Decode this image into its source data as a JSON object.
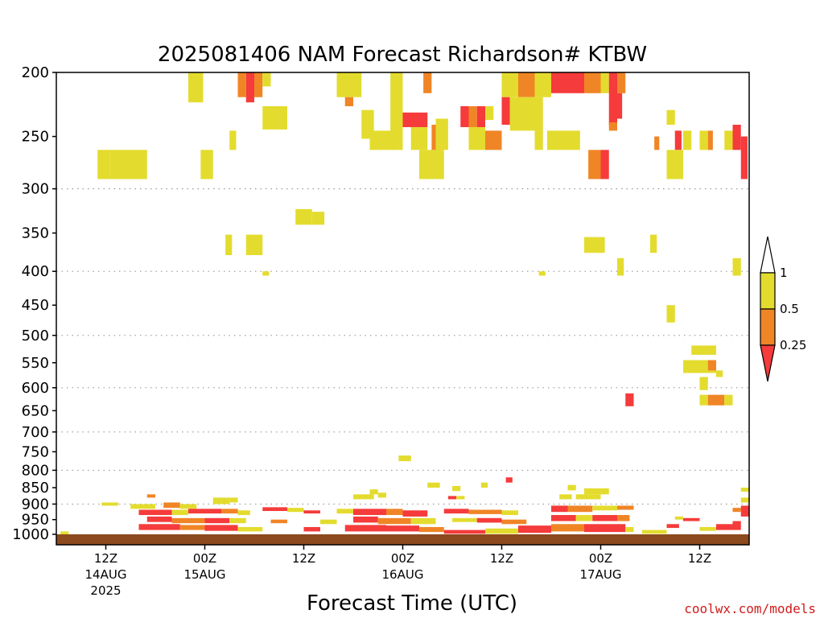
{
  "chart_data": {
    "type": "heatmap",
    "title": "2025081406 NAM Forecast Richardson# KTBW",
    "xlabel": "Forecast Time (UTC)",
    "ylabel": "",
    "y_scale": "pressure (reversed, log-like)",
    "ylim": [
      1000,
      200
    ],
    "y_ticks": [
      200,
      250,
      300,
      350,
      400,
      450,
      500,
      550,
      600,
      650,
      700,
      750,
      800,
      850,
      900,
      950,
      1000
    ],
    "dotted_gridlines_at": [
      300,
      400,
      500,
      600,
      700,
      800,
      900
    ],
    "x_ticks": [
      {
        "hour": 12,
        "label": "12Z",
        "date": "14AUG",
        "year": "2025"
      },
      {
        "hour": 24,
        "label": "00Z",
        "date": "15AUG",
        "year": ""
      },
      {
        "hour": 36,
        "label": "12Z",
        "date": "",
        "year": ""
      },
      {
        "hour": 48,
        "label": "00Z",
        "date": "16AUG",
        "year": ""
      },
      {
        "hour": 60,
        "label": "12Z",
        "date": "",
        "year": ""
      },
      {
        "hour": 72,
        "label": "00Z",
        "date": "17AUG",
        "year": ""
      },
      {
        "hour": 84,
        "label": "12Z",
        "date": "",
        "year": ""
      }
    ],
    "xlim_hours": [
      6,
      90
    ],
    "legend": {
      "placement": "right",
      "labels": [
        "1",
        "0.5",
        "0.25"
      ],
      "bins": [
        {
          "range": "< 0.25",
          "color": "#f53b3b"
        },
        {
          "range": "0.25 - 0.5",
          "color": "#f08526"
        },
        {
          "range": "0.5 - 1",
          "color": "#e3dc2e"
        },
        {
          "range": "> 1",
          "color": "#ffffff"
        }
      ]
    },
    "ground_color": "#8c4a1e",
    "cells": [
      {
        "t": 22.0,
        "dt": 1.8,
        "p": 200,
        "p2": 222,
        "c": "y"
      },
      {
        "t": 28.0,
        "dt": 1.0,
        "p": 200,
        "p2": 218,
        "c": "o"
      },
      {
        "t": 29.0,
        "dt": 1.0,
        "p": 200,
        "p2": 222,
        "c": "r"
      },
      {
        "t": 30.0,
        "dt": 1.0,
        "p": 200,
        "p2": 218,
        "c": "o"
      },
      {
        "t": 31.0,
        "dt": 1.0,
        "p": 200,
        "p2": 210,
        "c": "y"
      },
      {
        "t": 31.0,
        "dt": 3.0,
        "p": 225,
        "p2": 244,
        "c": "y"
      },
      {
        "t": 40.0,
        "dt": 3.0,
        "p": 200,
        "p2": 218,
        "c": "y"
      },
      {
        "t": 41.0,
        "dt": 1.0,
        "p": 218,
        "p2": 225,
        "c": "o"
      },
      {
        "t": 43.0,
        "dt": 1.5,
        "p": 228,
        "p2": 252,
        "c": "y"
      },
      {
        "t": 44.0,
        "dt": 3.0,
        "p": 245,
        "p2": 262,
        "c": "y"
      },
      {
        "t": 46.5,
        "dt": 1.5,
        "p": 200,
        "p2": 262,
        "c": "y"
      },
      {
        "t": 48.0,
        "dt": 3.0,
        "p": 230,
        "p2": 242,
        "c": "r"
      },
      {
        "t": 49.0,
        "dt": 2.0,
        "p": 242,
        "p2": 262,
        "c": "y"
      },
      {
        "t": 50.5,
        "dt": 1.0,
        "p": 200,
        "p2": 215,
        "c": "o"
      },
      {
        "t": 50.0,
        "dt": 3.0,
        "p": 262,
        "p2": 290,
        "c": "y"
      },
      {
        "t": 51.5,
        "dt": 1.0,
        "p": 240,
        "p2": 262,
        "c": "o"
      },
      {
        "t": 52.0,
        "dt": 1.5,
        "p": 235,
        "p2": 262,
        "c": "y"
      },
      {
        "t": 55.0,
        "dt": 1.0,
        "p": 225,
        "p2": 242,
        "c": "r"
      },
      {
        "t": 56.0,
        "dt": 1.0,
        "p": 225,
        "p2": 242,
        "c": "o"
      },
      {
        "t": 57.0,
        "dt": 1.0,
        "p": 225,
        "p2": 245,
        "c": "r"
      },
      {
        "t": 58.0,
        "dt": 1.0,
        "p": 225,
        "p2": 236,
        "c": "y"
      },
      {
        "t": 56.0,
        "dt": 2.0,
        "p": 242,
        "p2": 262,
        "c": "y"
      },
      {
        "t": 58.0,
        "dt": 2.0,
        "p": 245,
        "p2": 262,
        "c": "o"
      },
      {
        "t": 60.0,
        "dt": 2.0,
        "p": 200,
        "p2": 218,
        "c": "y"
      },
      {
        "t": 62.0,
        "dt": 2.0,
        "p": 200,
        "p2": 218,
        "c": "o"
      },
      {
        "t": 64.0,
        "dt": 2.0,
        "p": 200,
        "p2": 218,
        "c": "y"
      },
      {
        "t": 60.0,
        "dt": 1.0,
        "p": 218,
        "p2": 240,
        "c": "r"
      },
      {
        "t": 61.0,
        "dt": 4.0,
        "p": 218,
        "p2": 245,
        "c": "y"
      },
      {
        "t": 64.0,
        "dt": 1.0,
        "p": 245,
        "p2": 262,
        "c": "y"
      },
      {
        "t": 65.5,
        "dt": 4.0,
        "p": 245,
        "p2": 262,
        "c": "y"
      },
      {
        "t": 66.0,
        "dt": 4.0,
        "p": 200,
        "p2": 215,
        "c": "r"
      },
      {
        "t": 70.0,
        "dt": 2.0,
        "p": 200,
        "p2": 215,
        "c": "o"
      },
      {
        "t": 72.0,
        "dt": 1.0,
        "p": 200,
        "p2": 215,
        "c": "y"
      },
      {
        "t": 73.0,
        "dt": 1.0,
        "p": 200,
        "p2": 240,
        "c": "r"
      },
      {
        "t": 74.0,
        "dt": 1.0,
        "p": 200,
        "p2": 215,
        "c": "o"
      },
      {
        "t": 74.0,
        "dt": 0.6,
        "p": 215,
        "p2": 235,
        "c": "r"
      },
      {
        "t": 73.0,
        "dt": 1.0,
        "p": 238,
        "p2": 245,
        "c": "o"
      },
      {
        "t": 70.5,
        "dt": 1.5,
        "p": 262,
        "p2": 290,
        "c": "o"
      },
      {
        "t": 72.0,
        "dt": 1.0,
        "p": 262,
        "p2": 290,
        "c": "r"
      },
      {
        "t": 78.5,
        "dt": 0.6,
        "p": 250,
        "p2": 262,
        "c": "o"
      },
      {
        "t": 80.0,
        "dt": 1.0,
        "p": 228,
        "p2": 240,
        "c": "y"
      },
      {
        "t": 81.0,
        "dt": 0.8,
        "p": 245,
        "p2": 262,
        "c": "r"
      },
      {
        "t": 80.0,
        "dt": 2.0,
        "p": 262,
        "p2": 290,
        "c": "y"
      },
      {
        "t": 82.0,
        "dt": 1.0,
        "p": 245,
        "p2": 262,
        "c": "y"
      },
      {
        "t": 84.0,
        "dt": 1.0,
        "p": 245,
        "p2": 262,
        "c": "y"
      },
      {
        "t": 85.0,
        "dt": 0.6,
        "p": 245,
        "p2": 262,
        "c": "o"
      },
      {
        "t": 87.0,
        "dt": 1.0,
        "p": 245,
        "p2": 262,
        "c": "y"
      },
      {
        "t": 88.0,
        "dt": 1.0,
        "p": 240,
        "p2": 262,
        "c": "r"
      },
      {
        "t": 89.0,
        "dt": 0.8,
        "p": 250,
        "p2": 290,
        "c": "r"
      },
      {
        "t": 11.0,
        "dt": 1.5,
        "p": 262,
        "p2": 290,
        "c": "y"
      },
      {
        "t": 12.5,
        "dt": 4.5,
        "p": 262,
        "p2": 290,
        "c": "y"
      },
      {
        "t": 23.5,
        "dt": 1.5,
        "p": 262,
        "p2": 290,
        "c": "y"
      },
      {
        "t": 27.0,
        "dt": 0.8,
        "p": 245,
        "p2": 262,
        "c": "y"
      },
      {
        "t": 35.0,
        "dt": 2.0,
        "p": 322,
        "p2": 340,
        "c": "y"
      },
      {
        "t": 37.0,
        "dt": 1.5,
        "p": 325,
        "p2": 340,
        "c": "y"
      },
      {
        "t": 26.5,
        "dt": 0.8,
        "p": 352,
        "p2": 378,
        "c": "y"
      },
      {
        "t": 29.0,
        "dt": 2.0,
        "p": 352,
        "p2": 378,
        "c": "y"
      },
      {
        "t": 31.0,
        "dt": 0.8,
        "p": 400,
        "p2": 406,
        "c": "y"
      },
      {
        "t": 70.0,
        "dt": 2.5,
        "p": 355,
        "p2": 375,
        "c": "y"
      },
      {
        "t": 78.0,
        "dt": 0.8,
        "p": 352,
        "p2": 375,
        "c": "y"
      },
      {
        "t": 74.0,
        "dt": 0.8,
        "p": 382,
        "p2": 406,
        "c": "y"
      },
      {
        "t": 88.0,
        "dt": 1.0,
        "p": 382,
        "p2": 406,
        "c": "y"
      },
      {
        "t": 64.5,
        "dt": 0.8,
        "p": 400,
        "p2": 406,
        "c": "y"
      },
      {
        "t": 80.0,
        "dt": 1.0,
        "p": 450,
        "p2": 478,
        "c": "y"
      },
      {
        "t": 83.0,
        "dt": 3.0,
        "p": 518,
        "p2": 535,
        "c": "y"
      },
      {
        "t": 82.0,
        "dt": 4.0,
        "p": 545,
        "p2": 570,
        "c": "y"
      },
      {
        "t": 85.0,
        "dt": 1.0,
        "p": 545,
        "p2": 565,
        "c": "o"
      },
      {
        "t": 86.0,
        "dt": 0.8,
        "p": 565,
        "p2": 578,
        "c": "y"
      },
      {
        "t": 84.0,
        "dt": 1.0,
        "p": 578,
        "p2": 605,
        "c": "y"
      },
      {
        "t": 84.0,
        "dt": 1.0,
        "p": 615,
        "p2": 638,
        "c": "y"
      },
      {
        "t": 85.0,
        "dt": 2.0,
        "p": 615,
        "p2": 638,
        "c": "o"
      },
      {
        "t": 87.0,
        "dt": 1.0,
        "p": 615,
        "p2": 638,
        "c": "y"
      },
      {
        "t": 75.0,
        "dt": 1.0,
        "p": 612,
        "p2": 640,
        "c": "r"
      },
      {
        "t": 47.5,
        "dt": 1.5,
        "p": 760,
        "p2": 775,
        "c": "y"
      },
      {
        "t": 51.0,
        "dt": 1.5,
        "p": 835,
        "p2": 850,
        "c": "y"
      },
      {
        "t": 60.5,
        "dt": 0.8,
        "p": 820,
        "p2": 835,
        "c": "r"
      },
      {
        "t": 57.5,
        "dt": 0.8,
        "p": 835,
        "p2": 850,
        "c": "y"
      },
      {
        "t": 54.0,
        "dt": 1.0,
        "p": 845,
        "p2": 860,
        "c": "y"
      },
      {
        "t": 44.0,
        "dt": 1.0,
        "p": 855,
        "p2": 870,
        "c": "y"
      },
      {
        "t": 68.0,
        "dt": 1.0,
        "p": 842,
        "p2": 858,
        "c": "y"
      },
      {
        "t": 70.0,
        "dt": 3.0,
        "p": 852,
        "p2": 870,
        "c": "y"
      },
      {
        "t": 89.0,
        "dt": 1.0,
        "p": 850,
        "p2": 862,
        "c": "y"
      },
      {
        "t": 11.5,
        "dt": 2.0,
        "p": 895,
        "p2": 905,
        "c": "y"
      },
      {
        "t": 17.0,
        "dt": 1.0,
        "p": 870,
        "p2": 880,
        "c": "o"
      },
      {
        "t": 25.0,
        "dt": 2.0,
        "p": 880,
        "p2": 900,
        "c": "y"
      },
      {
        "t": 27.0,
        "dt": 1.0,
        "p": 880,
        "p2": 895,
        "c": "y"
      },
      {
        "t": 42.0,
        "dt": 2.5,
        "p": 870,
        "p2": 885,
        "c": "y"
      },
      {
        "t": 45.0,
        "dt": 1.0,
        "p": 865,
        "p2": 880,
        "c": "y"
      },
      {
        "t": 53.5,
        "dt": 1.0,
        "p": 875,
        "p2": 885,
        "c": "r"
      },
      {
        "t": 54.5,
        "dt": 1.0,
        "p": 875,
        "p2": 885,
        "c": "y"
      },
      {
        "t": 67.0,
        "dt": 1.5,
        "p": 870,
        "p2": 885,
        "c": "y"
      },
      {
        "t": 69.0,
        "dt": 3.0,
        "p": 870,
        "p2": 885,
        "c": "y"
      },
      {
        "t": 89.0,
        "dt": 1.0,
        "p": 880,
        "p2": 895,
        "c": "y"
      },
      {
        "t": 15.0,
        "dt": 3.0,
        "p": 900,
        "p2": 915,
        "c": "y"
      },
      {
        "t": 19.0,
        "dt": 2.0,
        "p": 895,
        "p2": 912,
        "c": "o"
      },
      {
        "t": 21.0,
        "dt": 2.0,
        "p": 900,
        "p2": 915,
        "c": "y"
      },
      {
        "t": 16.0,
        "dt": 4.0,
        "p": 918,
        "p2": 935,
        "c": "r"
      },
      {
        "t": 20.0,
        "dt": 2.0,
        "p": 918,
        "p2": 935,
        "c": "y"
      },
      {
        "t": 22.0,
        "dt": 4.0,
        "p": 915,
        "p2": 930,
        "c": "r"
      },
      {
        "t": 26.0,
        "dt": 2.0,
        "p": 915,
        "p2": 930,
        "c": "o"
      },
      {
        "t": 28.0,
        "dt": 1.5,
        "p": 920,
        "p2": 935,
        "c": "y"
      },
      {
        "t": 17.0,
        "dt": 3.0,
        "p": 940,
        "p2": 958,
        "c": "r"
      },
      {
        "t": 20.0,
        "dt": 4.0,
        "p": 945,
        "p2": 962,
        "c": "o"
      },
      {
        "t": 24.0,
        "dt": 3.0,
        "p": 945,
        "p2": 962,
        "c": "r"
      },
      {
        "t": 27.0,
        "dt": 2.0,
        "p": 945,
        "p2": 962,
        "c": "y"
      },
      {
        "t": 16.0,
        "dt": 5.0,
        "p": 965,
        "p2": 985,
        "c": "r"
      },
      {
        "t": 21.0,
        "dt": 3.0,
        "p": 968,
        "p2": 985,
        "c": "o"
      },
      {
        "t": 24.0,
        "dt": 4.0,
        "p": 968,
        "p2": 988,
        "c": "r"
      },
      {
        "t": 28.0,
        "dt": 3.0,
        "p": 975,
        "p2": 990,
        "c": "y"
      },
      {
        "t": 31.0,
        "dt": 3.0,
        "p": 910,
        "p2": 922,
        "c": "r"
      },
      {
        "t": 34.0,
        "dt": 2.0,
        "p": 912,
        "p2": 925,
        "c": "y"
      },
      {
        "t": 36.0,
        "dt": 2.0,
        "p": 920,
        "p2": 930,
        "c": "r"
      },
      {
        "t": 32.0,
        "dt": 2.0,
        "p": 950,
        "p2": 962,
        "c": "o"
      },
      {
        "t": 36.0,
        "dt": 2.0,
        "p": 975,
        "p2": 990,
        "c": "r"
      },
      {
        "t": 38.0,
        "dt": 2.0,
        "p": 950,
        "p2": 965,
        "c": "y"
      },
      {
        "t": 40.0,
        "dt": 2.0,
        "p": 915,
        "p2": 930,
        "c": "y"
      },
      {
        "t": 42.0,
        "dt": 4.0,
        "p": 915,
        "p2": 935,
        "c": "r"
      },
      {
        "t": 46.0,
        "dt": 2.0,
        "p": 915,
        "p2": 935,
        "c": "o"
      },
      {
        "t": 48.0,
        "dt": 3.0,
        "p": 920,
        "p2": 940,
        "c": "r"
      },
      {
        "t": 42.0,
        "dt": 3.0,
        "p": 940,
        "p2": 960,
        "c": "r"
      },
      {
        "t": 45.0,
        "dt": 4.0,
        "p": 945,
        "p2": 965,
        "c": "o"
      },
      {
        "t": 49.0,
        "dt": 3.0,
        "p": 945,
        "p2": 965,
        "c": "y"
      },
      {
        "t": 41.0,
        "dt": 5.0,
        "p": 968,
        "p2": 990,
        "c": "r"
      },
      {
        "t": 46.0,
        "dt": 4.0,
        "p": 970,
        "p2": 990,
        "c": "r"
      },
      {
        "t": 50.0,
        "dt": 3.0,
        "p": 975,
        "p2": 992,
        "c": "o"
      },
      {
        "t": 53.0,
        "dt": 3.0,
        "p": 915,
        "p2": 930,
        "c": "r"
      },
      {
        "t": 56.0,
        "dt": 4.0,
        "p": 918,
        "p2": 932,
        "c": "o"
      },
      {
        "t": 60.0,
        "dt": 2.0,
        "p": 920,
        "p2": 935,
        "c": "y"
      },
      {
        "t": 54.0,
        "dt": 3.0,
        "p": 945,
        "p2": 958,
        "c": "y"
      },
      {
        "t": 57.0,
        "dt": 3.0,
        "p": 945,
        "p2": 960,
        "c": "r"
      },
      {
        "t": 60.0,
        "dt": 3.0,
        "p": 950,
        "p2": 965,
        "c": "o"
      },
      {
        "t": 53.0,
        "dt": 5.0,
        "p": 985,
        "p2": 998,
        "c": "r"
      },
      {
        "t": 58.0,
        "dt": 4.0,
        "p": 980,
        "p2": 998,
        "c": "y"
      },
      {
        "t": 62.0,
        "dt": 4.0,
        "p": 970,
        "p2": 995,
        "c": "r"
      },
      {
        "t": 66.0,
        "dt": 2.0,
        "p": 905,
        "p2": 925,
        "c": "r"
      },
      {
        "t": 68.0,
        "dt": 3.0,
        "p": 905,
        "p2": 925,
        "c": "o"
      },
      {
        "t": 71.0,
        "dt": 3.0,
        "p": 905,
        "p2": 920,
        "c": "y"
      },
      {
        "t": 74.0,
        "dt": 2.0,
        "p": 905,
        "p2": 918,
        "c": "o"
      },
      {
        "t": 66.0,
        "dt": 3.0,
        "p": 935,
        "p2": 955,
        "c": "r"
      },
      {
        "t": 69.0,
        "dt": 2.0,
        "p": 935,
        "p2": 955,
        "c": "y"
      },
      {
        "t": 71.0,
        "dt": 3.0,
        "p": 935,
        "p2": 955,
        "c": "r"
      },
      {
        "t": 74.0,
        "dt": 1.5,
        "p": 935,
        "p2": 955,
        "c": "o"
      },
      {
        "t": 66.0,
        "dt": 4.0,
        "p": 965,
        "p2": 990,
        "c": "o"
      },
      {
        "t": 70.0,
        "dt": 5.0,
        "p": 965,
        "p2": 992,
        "c": "r"
      },
      {
        "t": 75.0,
        "dt": 1.0,
        "p": 975,
        "p2": 992,
        "c": "y"
      },
      {
        "t": 77.0,
        "dt": 3.0,
        "p": 985,
        "p2": 998,
        "c": "y"
      },
      {
        "t": 80.0,
        "dt": 1.5,
        "p": 965,
        "p2": 978,
        "c": "r"
      },
      {
        "t": 82.0,
        "dt": 2.0,
        "p": 945,
        "p2": 955,
        "c": "r"
      },
      {
        "t": 81.0,
        "dt": 1.0,
        "p": 940,
        "p2": 950,
        "c": "y"
      },
      {
        "t": 84.0,
        "dt": 2.0,
        "p": 975,
        "p2": 988,
        "c": "y"
      },
      {
        "t": 86.0,
        "dt": 2.0,
        "p": 965,
        "p2": 985,
        "c": "r"
      },
      {
        "t": 88.0,
        "dt": 1.0,
        "p": 955,
        "p2": 985,
        "c": "r"
      },
      {
        "t": 89.0,
        "dt": 1.0,
        "p": 905,
        "p2": 940,
        "c": "r"
      },
      {
        "t": 88.0,
        "dt": 1.0,
        "p": 912,
        "p2": 925,
        "c": "o"
      },
      {
        "t": 6.5,
        "dt": 1.0,
        "p": 990,
        "p2": 1000,
        "c": "y"
      }
    ]
  },
  "legend_colors": {
    "red": "#f53b3b",
    "orange": "#f08526",
    "yellow": "#e3dc2e"
  },
  "watermark": "coolwx.com/models"
}
